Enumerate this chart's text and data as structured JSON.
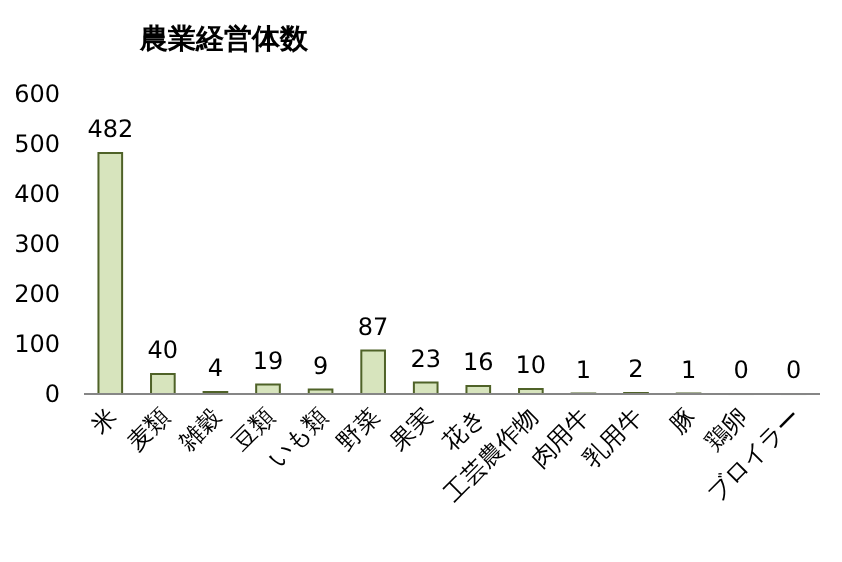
{
  "chart_data": {
    "type": "bar",
    "title": "農業経営体数",
    "categories": [
      "米",
      "麦類",
      "雑穀",
      "豆類",
      "いも類",
      "野菜",
      "果実",
      "花き",
      "工芸農作物",
      "肉用牛",
      "乳用牛",
      "豚",
      "鶏卵",
      "ブロイラー"
    ],
    "values": [
      482,
      40,
      4,
      19,
      9,
      87,
      23,
      16,
      10,
      1,
      2,
      1,
      0,
      0
    ],
    "color": "#d7e4bd",
    "ylim": [
      0,
      600
    ],
    "yticks": [
      0,
      100,
      200,
      300,
      400,
      500,
      600
    ],
    "data_labels": true,
    "grid": false
  }
}
